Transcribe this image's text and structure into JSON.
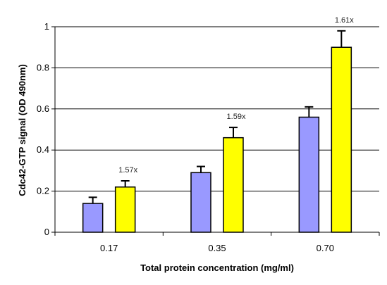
{
  "chart_data": {
    "type": "bar",
    "categories": [
      "0.17",
      "0.35",
      "0.70"
    ],
    "series": [
      {
        "values": [
          0.14,
          0.29,
          0.56
        ],
        "errors": [
          0.03,
          0.03,
          0.05
        ],
        "color": "#9999ff"
      },
      {
        "values": [
          0.22,
          0.46,
          0.9
        ],
        "errors": [
          0.03,
          0.05,
          0.08
        ],
        "color": "#ffff00"
      }
    ],
    "annotations": [
      {
        "category": "0.17",
        "text": "1.57x"
      },
      {
        "category": "0.35",
        "text": "1.59x"
      },
      {
        "category": "0.70",
        "text": "1.61x"
      }
    ],
    "xlabel": "Total protein concentration (mg/ml)",
    "ylabel": "Cdc42-GTP signal (OD 490nm)",
    "ylim": [
      0,
      1
    ],
    "yticks": [
      "0",
      "0.2",
      "0.4",
      "0.6",
      "0.8",
      "1"
    ],
    "grid": true,
    "legend": "none"
  }
}
